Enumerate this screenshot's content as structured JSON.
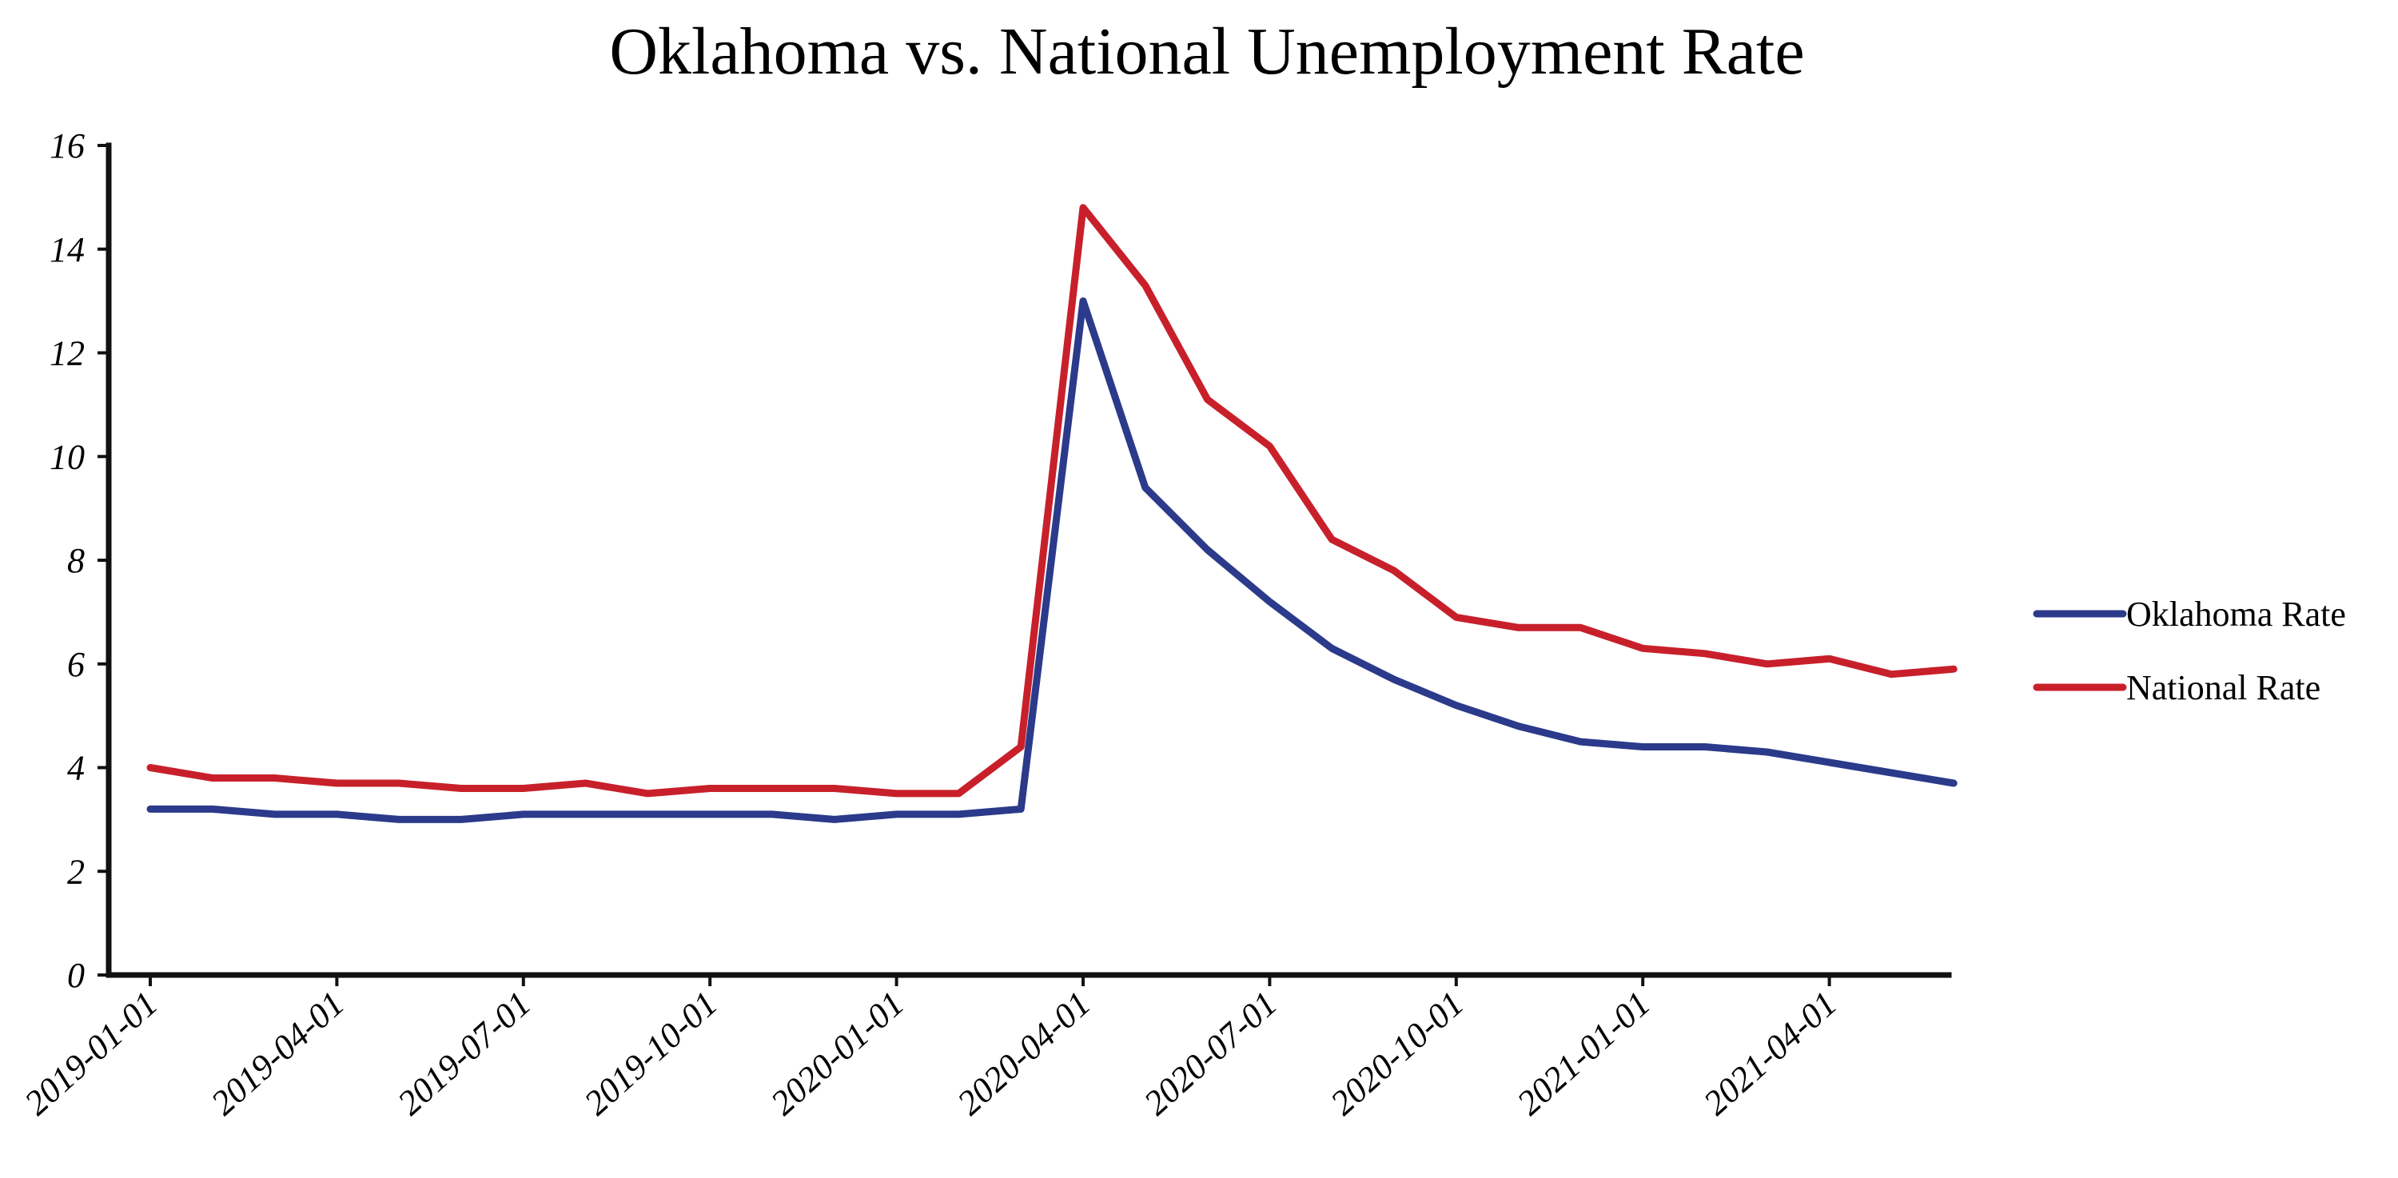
{
  "chart_data": {
    "type": "line",
    "title": "Oklahoma vs. National Unemployment Rate",
    "xlabel": "",
    "ylabel": "",
    "ylim": [
      0,
      16
    ],
    "yticks": [
      0,
      2,
      4,
      6,
      8,
      10,
      12,
      14,
      16
    ],
    "grid": false,
    "legend_position": "right",
    "xtick_labels": [
      "2019-01-01",
      "2019-04-01",
      "2019-07-01",
      "2019-10-01",
      "2020-01-01",
      "2020-04-01",
      "2020-07-01",
      "2020-10-01",
      "2021-01-01",
      "2021-04-01"
    ],
    "xtick_indices": [
      0,
      3,
      6,
      9,
      12,
      15,
      18,
      21,
      24,
      27
    ],
    "x": [
      "2019-01-01",
      "2019-02-01",
      "2019-03-01",
      "2019-04-01",
      "2019-05-01",
      "2019-06-01",
      "2019-07-01",
      "2019-08-01",
      "2019-09-01",
      "2019-10-01",
      "2019-11-01",
      "2019-12-01",
      "2020-01-01",
      "2020-02-01",
      "2020-03-01",
      "2020-04-01",
      "2020-05-01",
      "2020-06-01",
      "2020-07-01",
      "2020-08-01",
      "2020-09-01",
      "2020-10-01",
      "2020-11-01",
      "2020-12-01",
      "2021-01-01",
      "2021-02-01",
      "2021-03-01",
      "2021-04-01",
      "2021-05-01",
      "2021-06-01"
    ],
    "series": [
      {
        "name": "Oklahoma Rate",
        "color": "#2b3a8a",
        "values": [
          3.2,
          3.2,
          3.1,
          3.1,
          3.0,
          3.0,
          3.1,
          3.1,
          3.1,
          3.1,
          3.1,
          3.0,
          3.1,
          3.1,
          3.2,
          13.0,
          9.4,
          8.2,
          7.2,
          6.3,
          5.7,
          5.2,
          4.8,
          4.5,
          4.4,
          4.4,
          4.3,
          4.1,
          3.9,
          3.7
        ]
      },
      {
        "name": "National Rate",
        "color": "#c8202b",
        "values": [
          4.0,
          3.8,
          3.8,
          3.7,
          3.7,
          3.6,
          3.6,
          3.7,
          3.5,
          3.6,
          3.6,
          3.6,
          3.5,
          3.5,
          4.4,
          14.8,
          13.3,
          11.1,
          10.2,
          8.4,
          7.8,
          6.9,
          6.7,
          6.7,
          6.3,
          6.2,
          6.0,
          6.1,
          5.8,
          5.9
        ]
      }
    ]
  }
}
